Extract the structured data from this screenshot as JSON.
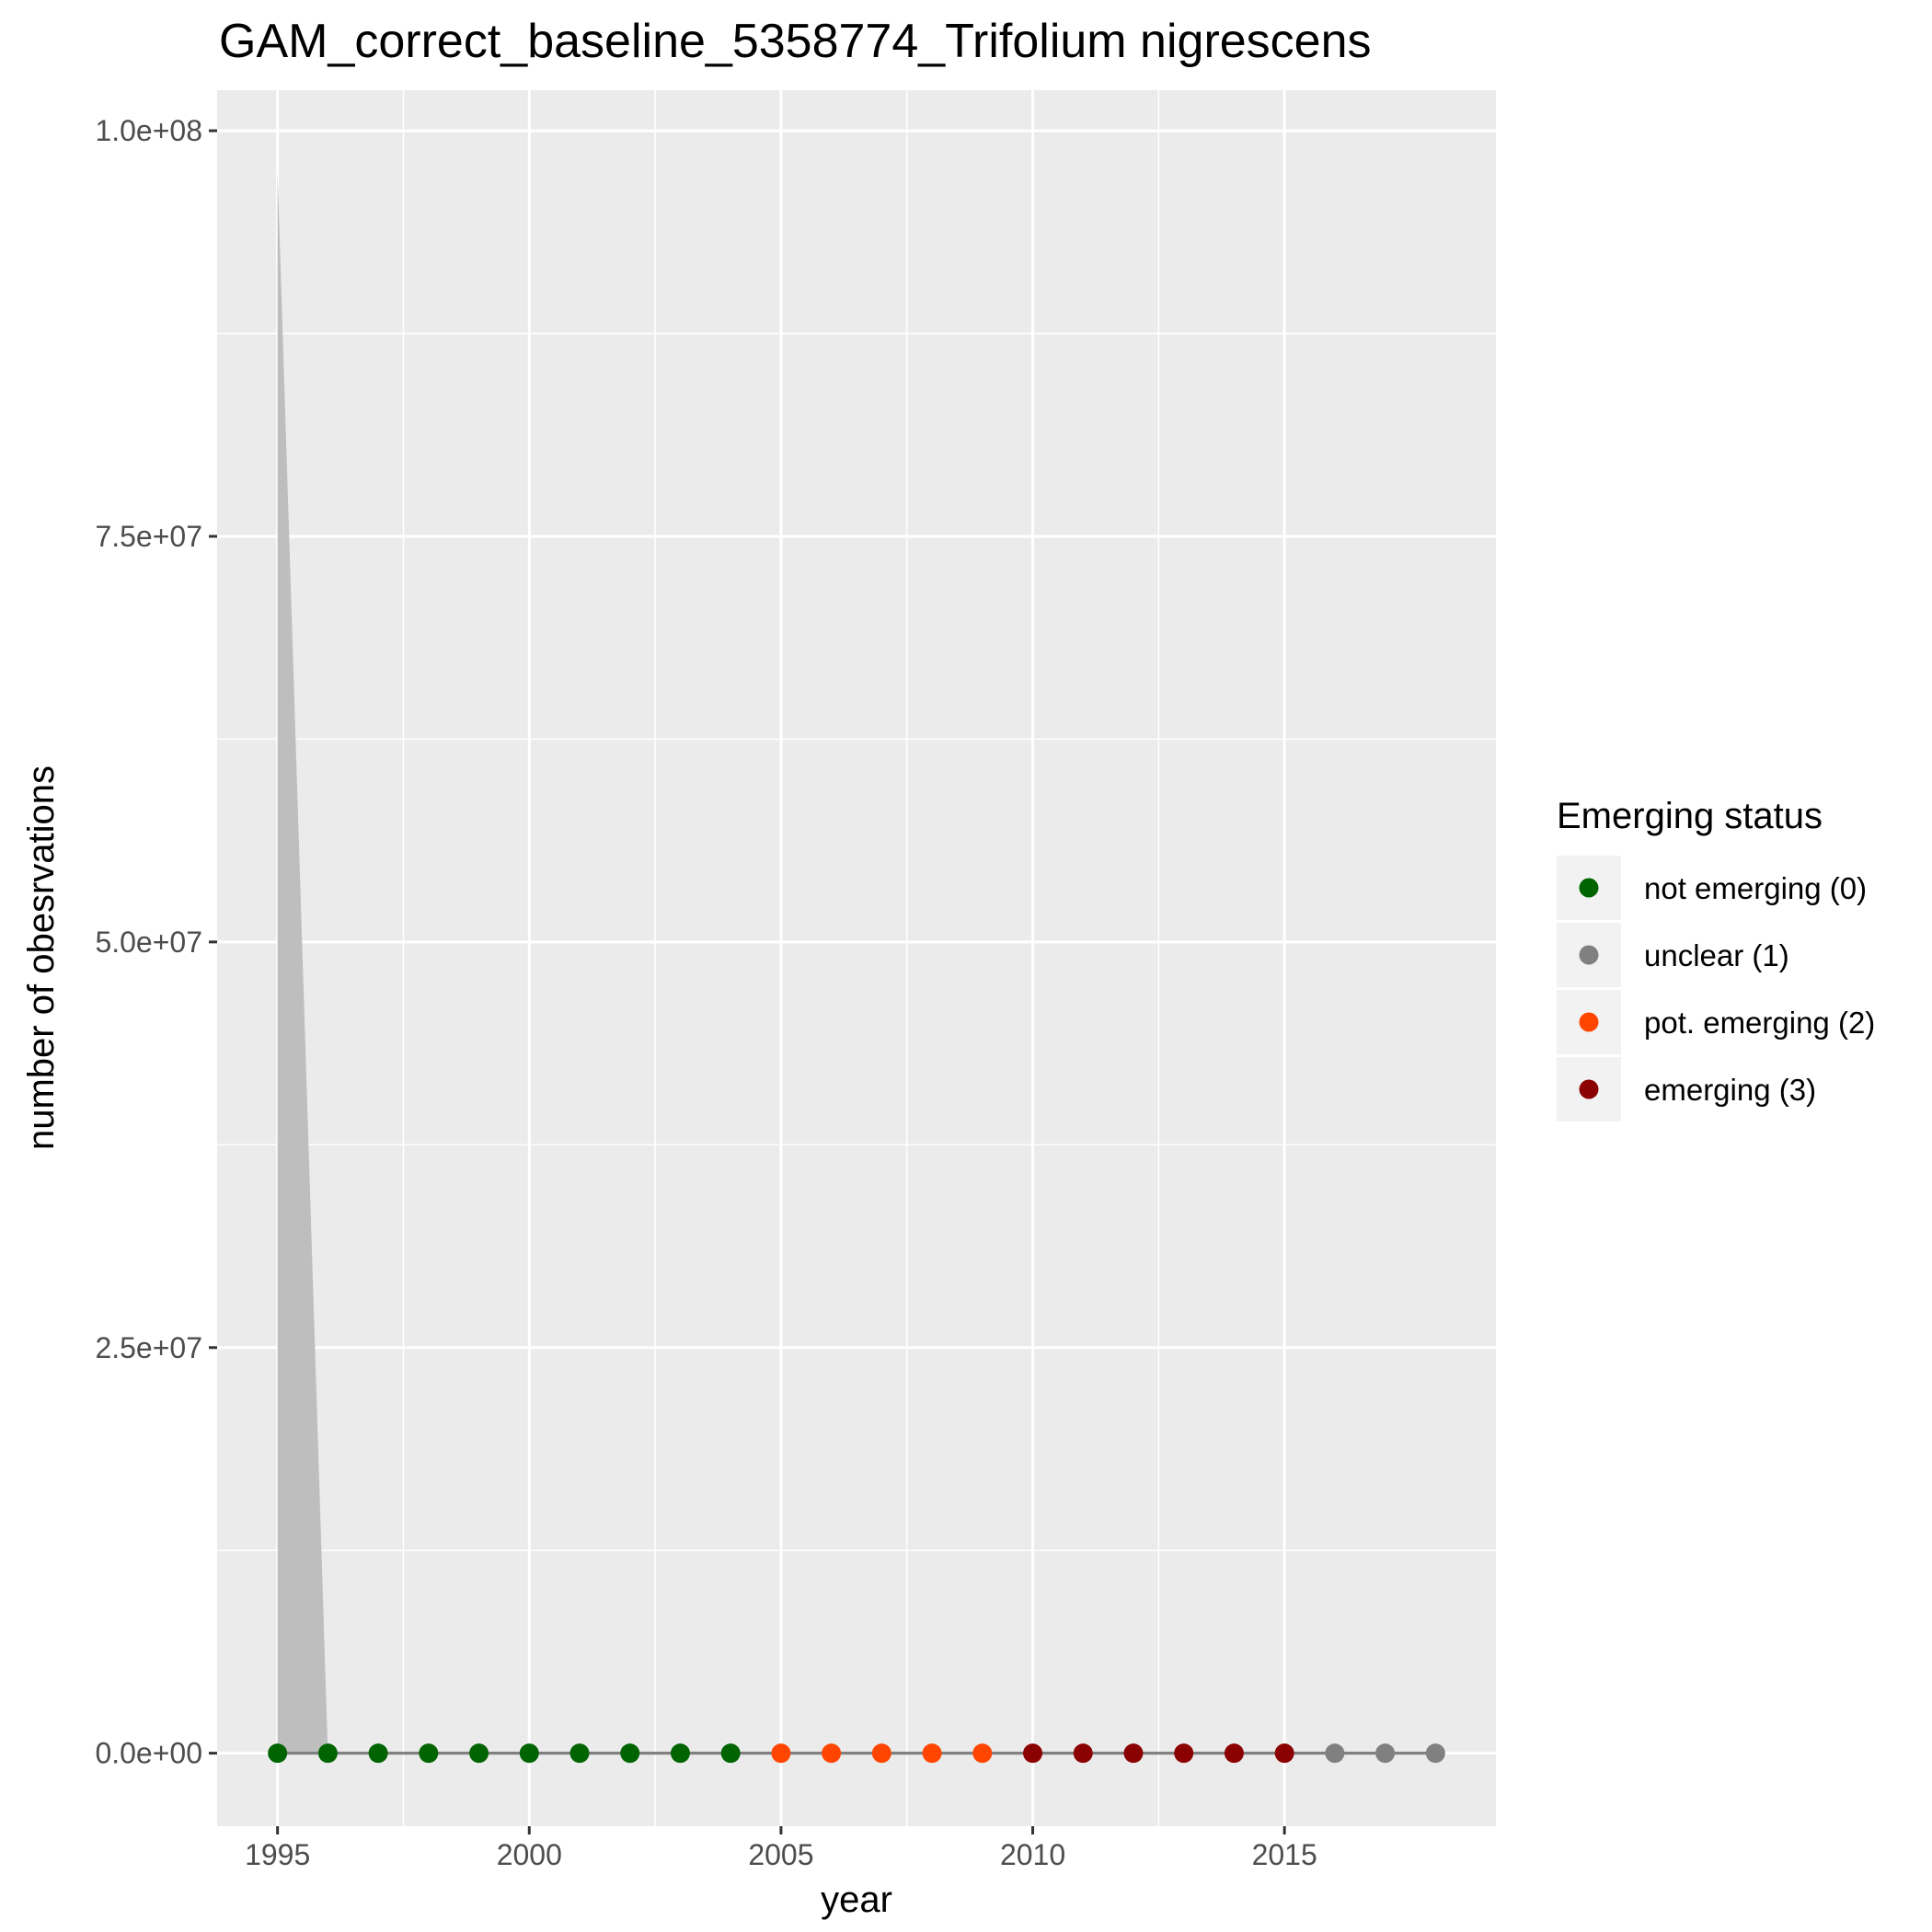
{
  "chart_data": {
    "type": "line",
    "title": "GAM_correct_baseline_5358774_Trifolium nigrescens",
    "xlabel": "year",
    "ylabel": "number of obesrvations",
    "xlim": [
      1993.8,
      2019.2
    ],
    "ylim": [
      -4500000,
      102500000
    ],
    "x_ticks": [
      1995,
      2000,
      2005,
      2010,
      2015
    ],
    "x_tick_labels": [
      "1995",
      "2000",
      "2005",
      "2010",
      "2015"
    ],
    "y_ticks": [
      0,
      25000000,
      50000000,
      75000000,
      100000000
    ],
    "y_tick_labels": [
      "0.0e+00",
      "2.5e+07",
      "5.0e+07",
      "7.5e+07",
      "1.0e+08"
    ],
    "grid": true,
    "background": "#ebebeb",
    "line_color": "#808080",
    "ribbon_color": "#bebebe",
    "ribbon": {
      "x": [
        1995,
        1996,
        1997
      ],
      "lower": [
        0,
        0,
        0
      ],
      "upper": [
        97500000,
        0,
        0
      ]
    },
    "x": [
      1995,
      1996,
      1997,
      1998,
      1999,
      2000,
      2001,
      2002,
      2003,
      2004,
      2005,
      2006,
      2007,
      2008,
      2009,
      2010,
      2011,
      2012,
      2013,
      2014,
      2015,
      2016,
      2017,
      2018
    ],
    "y": [
      0,
      0,
      0,
      0,
      0,
      0,
      0,
      0,
      0,
      0,
      0,
      0,
      0,
      0,
      0,
      0,
      0,
      0,
      0,
      0,
      0,
      0,
      0,
      0
    ],
    "status": [
      0,
      0,
      0,
      0,
      0,
      0,
      0,
      0,
      0,
      0,
      2,
      2,
      2,
      2,
      2,
      3,
      3,
      3,
      3,
      3,
      3,
      1,
      1,
      1
    ],
    "legend": {
      "title": "Emerging status",
      "position": "right",
      "entries": [
        {
          "label": "not emerging (0)",
          "value": 0,
          "color": "#006400"
        },
        {
          "label": "unclear (1)",
          "value": 1,
          "color": "#808080"
        },
        {
          "label": "pot. emerging (2)",
          "value": 2,
          "color": "#ff4500"
        },
        {
          "label": "emerging (3)",
          "value": 3,
          "color": "#8b0000"
        }
      ]
    }
  }
}
